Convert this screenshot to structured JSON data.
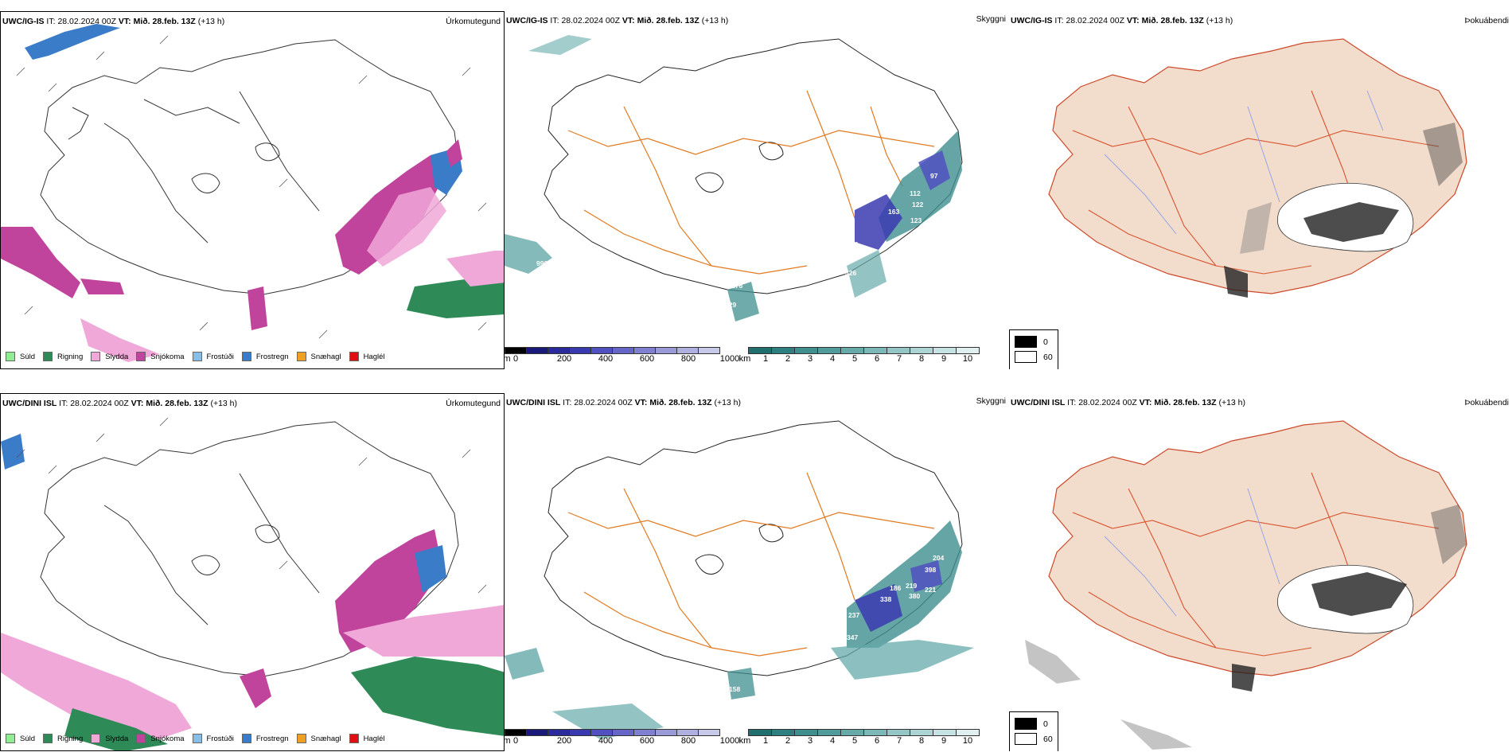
{
  "rows": [
    {
      "model": "UWC/IG-IS",
      "it_prefix": "IT:",
      "it_value": "28.02.2024 00Z",
      "vt_prefix": "VT:",
      "vt_value": "Mið. 28.feb. 13Z",
      "lead": "(+13 h)",
      "vis_numbers": [
        "996",
        "176",
        "229",
        "210",
        "163",
        "112",
        "122",
        "123",
        "204",
        "326",
        "97"
      ]
    },
    {
      "model": "UWC/DINI ISL",
      "it_prefix": "IT:",
      "it_value": "28.02.2024 00Z",
      "vt_prefix": "VT:",
      "vt_value": "Mið. 28.feb. 13Z",
      "lead": "(+13 h)",
      "vis_numbers": [
        "168",
        "158",
        "237",
        "347",
        "338",
        "186",
        "219",
        "380",
        "221",
        "398",
        "204"
      ]
    }
  ],
  "panel_titles": {
    "precip": "Úrkomutegund",
    "visibility": "Skyggni",
    "fog": "Þokuábendi"
  },
  "precip_legend": [
    {
      "label": "Súld",
      "color": "#90ee90"
    },
    {
      "label": "Rigning",
      "color": "#2e8b57"
    },
    {
      "label": "Slydda",
      "color": "#f0a8d8"
    },
    {
      "label": "Snjókoma",
      "color": "#c0449c"
    },
    {
      "label": "Frostúði",
      "color": "#87bfe8"
    },
    {
      "label": "Frostregn",
      "color": "#3a7cc7"
    },
    {
      "label": "Snæhagl",
      "color": "#f0a020"
    },
    {
      "label": "Haglél",
      "color": "#e01010"
    }
  ],
  "ceiling_scale": {
    "unit": "m",
    "ticks": [
      "0",
      "200",
      "400",
      "600",
      "800",
      "1000"
    ],
    "colors": [
      "#000000",
      "#1a1a7a",
      "#2a2a9a",
      "#3a3ab0",
      "#5050c0",
      "#6666c8",
      "#8080d0",
      "#9a9ad8",
      "#b0b0e0",
      "#c8c8e8"
    ]
  },
  "vis_scale": {
    "unit": "km",
    "ticks": [
      "1",
      "2",
      "3",
      "4",
      "5",
      "6",
      "7",
      "8",
      "9",
      "10"
    ],
    "colors": [
      "#1f6f6f",
      "#2e8080",
      "#3f8f8f",
      "#509c9c",
      "#66aaaa",
      "#7cb8b8",
      "#94c6c6",
      "#acd4d4",
      "#c6e2e2",
      "#e0f0f0"
    ]
  },
  "fog_legend": [
    {
      "label": "0",
      "color": "#000000"
    },
    {
      "label": "60",
      "color": "#ffffff"
    }
  ]
}
